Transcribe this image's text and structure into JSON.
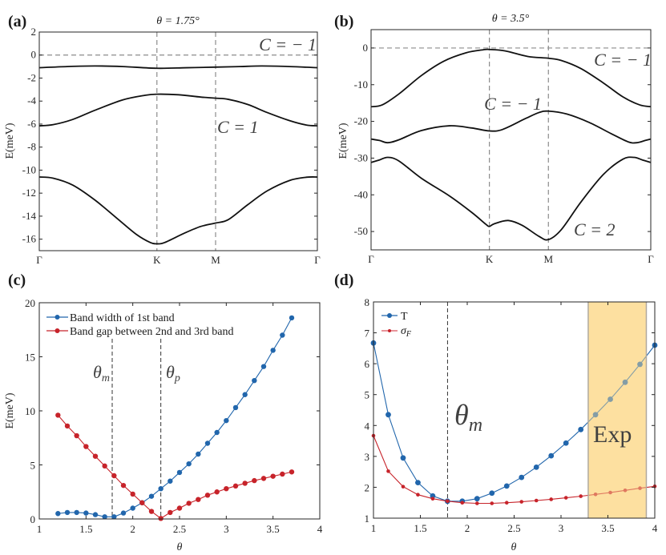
{
  "figure": {
    "panels": [
      "(a)",
      "(b)",
      "(c)",
      "(d)"
    ]
  },
  "chart_data": [
    {
      "id": "a",
      "type": "line",
      "panel_label": "(a)",
      "title": "θ = 1.75°",
      "xlabel": "",
      "ylabel": "E(meV)",
      "ylim": [
        -17,
        2
      ],
      "yticks": [
        2,
        0,
        -2,
        -4,
        -6,
        -8,
        -10,
        -12,
        -14,
        -16
      ],
      "x_path": {
        "labels": [
          "Γ",
          "K",
          "M",
          "Γ"
        ],
        "positions": [
          0,
          0.423,
          0.634,
          1
        ]
      },
      "reference_line_y": 0,
      "series": [
        {
          "name": "band 1",
          "x": [
            0,
            0.1,
            0.2,
            0.3,
            0.423,
            0.53,
            0.634,
            0.72,
            0.8,
            0.9,
            1
          ],
          "y": [
            -1.1,
            -1.0,
            -0.95,
            -1.0,
            -1.15,
            -1.1,
            -1.05,
            -1.0,
            -0.95,
            -1.0,
            -1.1
          ]
        },
        {
          "name": "band 2",
          "x": [
            0,
            0.05,
            0.12,
            0.2,
            0.3,
            0.38,
            0.423,
            0.5,
            0.58,
            0.634,
            0.68,
            0.75,
            0.82,
            0.9,
            0.96,
            1
          ],
          "y": [
            -6.15,
            -6.05,
            -5.6,
            -4.8,
            -3.9,
            -3.5,
            -3.4,
            -3.45,
            -3.65,
            -3.75,
            -3.85,
            -4.3,
            -5.0,
            -5.7,
            -6.08,
            -6.15
          ]
        },
        {
          "name": "band 3",
          "x": [
            0,
            0.05,
            0.12,
            0.2,
            0.28,
            0.35,
            0.4,
            0.423,
            0.45,
            0.52,
            0.58,
            0.634,
            0.68,
            0.75,
            0.82,
            0.9,
            0.96,
            1
          ],
          "y": [
            -10.6,
            -10.7,
            -11.3,
            -12.6,
            -14.2,
            -15.6,
            -16.3,
            -16.4,
            -16.3,
            -15.5,
            -14.9,
            -14.6,
            -14.3,
            -13.0,
            -11.8,
            -10.9,
            -10.62,
            -10.6
          ]
        }
      ],
      "annotations": [
        {
          "text": "C = − 1",
          "near": "top-right"
        },
        {
          "text": "C = 1",
          "near": "right of M"
        }
      ]
    },
    {
      "id": "b",
      "type": "line",
      "panel_label": "(b)",
      "title": "θ = 3.5°",
      "xlabel": "",
      "ylabel": "E(meV)",
      "ylim": [
        -55,
        5
      ],
      "yticks": [
        0,
        -10,
        -20,
        -30,
        -40,
        -50
      ],
      "x_path": {
        "labels": [
          "Γ",
          "K",
          "M",
          "Γ"
        ],
        "positions": [
          0,
          0.423,
          0.634,
          1
        ]
      },
      "reference_line_y": 0,
      "series": [
        {
          "name": "band 1",
          "x": [
            0,
            0.04,
            0.1,
            0.18,
            0.26,
            0.34,
            0.4,
            0.423,
            0.48,
            0.56,
            0.634,
            0.68,
            0.75,
            0.83,
            0.9,
            0.96,
            1
          ],
          "y": [
            -16,
            -15.5,
            -12.5,
            -7.5,
            -3.6,
            -1.3,
            -0.5,
            -0.4,
            -0.8,
            -2.3,
            -2.8,
            -3.4,
            -5.6,
            -9.5,
            -13.3,
            -15.5,
            -16
          ]
        },
        {
          "name": "band 2",
          "x": [
            0,
            0.03,
            0.06,
            0.1,
            0.18,
            0.28,
            0.36,
            0.423,
            0.47,
            0.55,
            0.6,
            0.634,
            0.7,
            0.78,
            0.86,
            0.92,
            0.95,
            0.98,
            1
          ],
          "y": [
            -24.8,
            -25.2,
            -25.8,
            -25.0,
            -22.5,
            -21.2,
            -21.8,
            -22.6,
            -22.2,
            -19.3,
            -17.6,
            -17.2,
            -18.0,
            -20.3,
            -23.4,
            -25.6,
            -25.8,
            -25.2,
            -24.8
          ]
        },
        {
          "name": "band 3",
          "x": [
            0,
            0.03,
            0.06,
            0.1,
            0.18,
            0.28,
            0.36,
            0.41,
            0.423,
            0.44,
            0.49,
            0.54,
            0.6,
            0.634,
            0.68,
            0.75,
            0.83,
            0.9,
            0.94,
            0.97,
            1
          ],
          "y": [
            -31.2,
            -30.5,
            -29.8,
            -30.8,
            -35.5,
            -40.3,
            -44.8,
            -48.0,
            -48.6,
            -47.9,
            -47.0,
            -48.3,
            -51.3,
            -52.2,
            -49.5,
            -42.0,
            -34.5,
            -30.3,
            -29.8,
            -30.5,
            -31.2
          ]
        }
      ],
      "annotations": [
        {
          "text": "C = − 1",
          "near": "upper-right"
        },
        {
          "text": "C = − 1",
          "near": "above M"
        },
        {
          "text": "C = 2",
          "near": "bottom-right"
        }
      ]
    },
    {
      "id": "c",
      "type": "line",
      "panel_label": "(c)",
      "title": "",
      "xlabel": "θ",
      "ylabel": "E(meV)",
      "xlim": [
        1,
        4
      ],
      "ylim": [
        0,
        20
      ],
      "xticks": [
        1,
        1.5,
        2,
        2.5,
        3,
        3.5,
        4
      ],
      "yticks": [
        0,
        5,
        10,
        15,
        20
      ],
      "legend_position": "top-left",
      "vlines": [
        {
          "x": 1.78,
          "label": "θm"
        },
        {
          "x": 2.3,
          "label": "θp"
        }
      ],
      "x": [
        1.2,
        1.3,
        1.4,
        1.5,
        1.6,
        1.7,
        1.8,
        1.9,
        2.0,
        2.1,
        2.2,
        2.3,
        2.4,
        2.5,
        2.6,
        2.7,
        2.8,
        2.9,
        3.0,
        3.1,
        3.2,
        3.3,
        3.4,
        3.5,
        3.6,
        3.7
      ],
      "series": [
        {
          "name": "Band width of 1st band",
          "color": "#2166ac",
          "values": [
            0.5,
            0.6,
            0.6,
            0.55,
            0.4,
            0.2,
            0.2,
            0.55,
            1.0,
            1.5,
            2.1,
            2.8,
            3.5,
            4.3,
            5.1,
            6.0,
            7.0,
            8.0,
            9.1,
            10.3,
            11.5,
            12.8,
            14.1,
            15.6,
            17.0,
            18.6
          ]
        },
        {
          "name": "Band gap between 2nd and 3rd band",
          "color": "#c7232a",
          "values": [
            9.6,
            8.6,
            7.7,
            6.7,
            5.8,
            4.9,
            4.0,
            3.1,
            2.3,
            1.5,
            0.7,
            0.05,
            0.6,
            1.0,
            1.45,
            1.8,
            2.2,
            2.5,
            2.8,
            3.05,
            3.3,
            3.55,
            3.75,
            3.95,
            4.15,
            4.35
          ]
        }
      ]
    },
    {
      "id": "d",
      "type": "line",
      "panel_label": "(d)",
      "title": "",
      "xlabel": "θ",
      "ylabel": "",
      "xlim": [
        1,
        4
      ],
      "ylim": [
        1,
        8
      ],
      "xticks": [
        1,
        1.5,
        2,
        2.5,
        3,
        3.5,
        4
      ],
      "yticks": [
        1,
        2,
        3,
        4,
        5,
        6,
        7,
        8
      ],
      "legend_position": "top-left",
      "vlines": [
        {
          "x": 1.79,
          "label": "θm"
        }
      ],
      "shaded_region": {
        "x_range": [
          3.29,
          3.91
        ],
        "label": "Exp",
        "color": "#fde0a0"
      },
      "x": [
        1.0,
        1.158,
        1.316,
        1.474,
        1.632,
        1.789,
        1.947,
        2.105,
        2.263,
        2.421,
        2.579,
        2.737,
        2.895,
        3.053,
        3.211,
        3.368,
        3.526,
        3.684,
        3.842,
        4.0
      ],
      "series": [
        {
          "name": "T",
          "color": "#2166ac",
          "values": [
            6.67,
            4.35,
            2.95,
            2.15,
            1.72,
            1.55,
            1.55,
            1.63,
            1.81,
            2.04,
            2.32,
            2.65,
            3.02,
            3.43,
            3.87,
            4.35,
            4.85,
            5.4,
            5.98,
            6.6
          ]
        },
        {
          "name": "σF",
          "color": "#c7232a",
          "values": [
            3.67,
            2.52,
            2.02,
            1.76,
            1.63,
            1.55,
            1.5,
            1.48,
            1.48,
            1.5,
            1.53,
            1.57,
            1.61,
            1.66,
            1.71,
            1.77,
            1.83,
            1.9,
            1.97,
            2.03
          ]
        }
      ]
    }
  ]
}
